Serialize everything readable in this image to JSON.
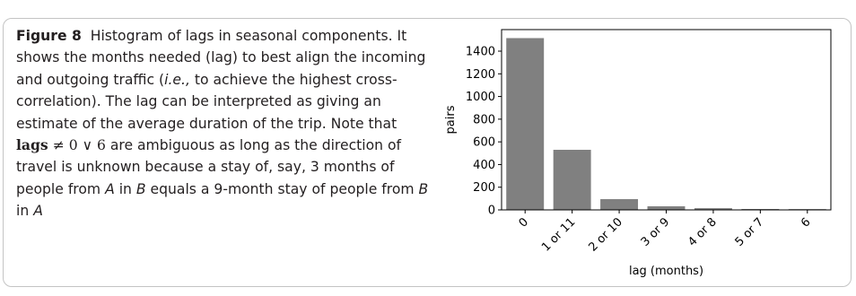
{
  "caption": {
    "fig_label": "Figure 8",
    "seg1": "Histogram of lags in seasonal components. It shows the months needed (lag) to best align the incoming and outgoing traffic (",
    "ie": "i.e.,",
    "seg2": " to achieve the highest cross-correlation). The lag can be interpreted as giving an estimate of the average duration of the trip. Note that ",
    "math_bold": "lags",
    "math_rest": " ≠ 0 ∨ 6",
    "seg3": " are ambiguous as long as the direction of travel is unknown because a stay of, say, 3 months of people from ",
    "var_a1": "A",
    "seg4": " in ",
    "var_b1": "B",
    "seg5": " equals a 9-month stay of people from ",
    "var_b2": "B",
    "seg6": " in ",
    "var_a2": "A"
  },
  "chart_data": {
    "type": "bar",
    "categories": [
      "0",
      "1 or 11",
      "2 or 10",
      "3 or 9",
      "4 or 8",
      "5 or 7",
      "6"
    ],
    "values": [
      1515,
      530,
      95,
      32,
      15,
      8,
      7
    ],
    "xlabel": "lag (months)",
    "ylabel": "pairs",
    "ylim": [
      0,
      1590
    ],
    "yticks": [
      0,
      200,
      400,
      600,
      800,
      1000,
      1200,
      1400
    ],
    "bar_color": "#808080",
    "grid": false
  }
}
